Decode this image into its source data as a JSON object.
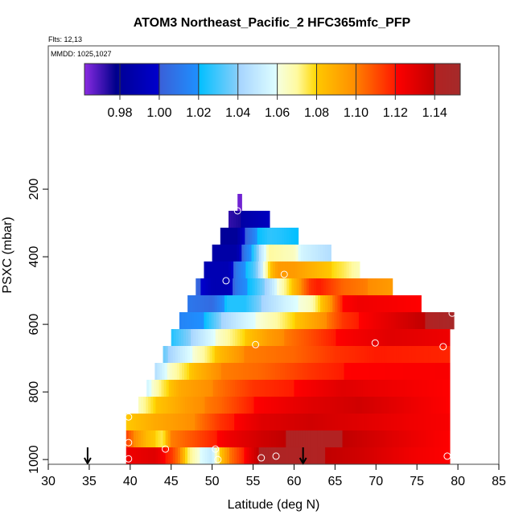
{
  "chart_data": {
    "type": "heatmap",
    "title": "ATOM3 Northeast_Pacific_2 HFC365mfc_PFP",
    "flights_label": "Flts: 12,13",
    "dates_label": "MMDD: 1025,1027",
    "xlabel": "Latitude (deg N)",
    "ylabel": "PSXC (mbar)",
    "xlim": [
      30,
      85
    ],
    "ylim": [
      1014,
      -224
    ],
    "x_ticks": [
      "30",
      "35",
      "40",
      "45",
      "50",
      "55",
      "60",
      "65",
      "70",
      "75",
      "80",
      "85"
    ],
    "y_ticks": [
      "200",
      "400",
      "600",
      "800",
      "1000"
    ],
    "colorbar": {
      "range": [
        0.962,
        1.153
      ],
      "ticks": [
        "0.98",
        "1.00",
        "1.02",
        "1.04",
        "1.06",
        "1.08",
        "1.10",
        "1.12",
        "1.14"
      ],
      "stops": [
        [
          0.962,
          "#8a2be2"
        ],
        [
          0.978,
          "#00008b"
        ],
        [
          0.98,
          "#000099"
        ],
        [
          1.0,
          "#0000cd"
        ],
        [
          1.0,
          "#3a5fd8"
        ],
        [
          1.02,
          "#1e90ff"
        ],
        [
          1.02,
          "#00bfff"
        ],
        [
          1.04,
          "#87cefa"
        ],
        [
          1.04,
          "#a4d3ff"
        ],
        [
          1.06,
          "#e0ffff"
        ],
        [
          1.06,
          "#f5ffe0"
        ],
        [
          1.07,
          "#fffaa0"
        ],
        [
          1.08,
          "#ffd700"
        ],
        [
          1.08,
          "#ffc800"
        ],
        [
          1.1,
          "#ff8c00"
        ],
        [
          1.1,
          "#ff7f00"
        ],
        [
          1.12,
          "#ff1a00"
        ],
        [
          1.12,
          "#ff0000"
        ],
        [
          1.14,
          "#c00000"
        ],
        [
          1.14,
          "#b22222"
        ],
        [
          1.153,
          "#a52a2a"
        ]
      ]
    },
    "rows": [
      {
        "p": [
          214,
          264
        ],
        "lat": [
          53.1,
          53.6
        ],
        "v": [
          [
            53.1,
            0.965
          ],
          [
            53.6,
            0.965
          ]
        ]
      },
      {
        "p": [
          264,
          314
        ],
        "lat": [
          52.0,
          57.0
        ],
        "v": [
          [
            52,
            0.972
          ],
          [
            53.4,
            0.975
          ],
          [
            53.6,
            0.985
          ],
          [
            55.5,
            0.99
          ],
          [
            57,
            0.995
          ]
        ]
      },
      {
        "p": [
          314,
          364
        ],
        "lat": [
          51.0,
          60.5
        ],
        "v": [
          [
            51,
            0.98
          ],
          [
            53,
            0.98
          ],
          [
            54,
            1.0
          ],
          [
            55.5,
            1.02
          ],
          [
            57,
            1.027
          ],
          [
            58.5,
            1.025
          ],
          [
            60.5,
            1.02
          ]
        ]
      },
      {
        "p": [
          364,
          414
        ],
        "lat": [
          50.0,
          64.5
        ],
        "v": [
          [
            50,
            0.985
          ],
          [
            53,
            0.985
          ],
          [
            54,
            1.01
          ],
          [
            55,
            1.025
          ],
          [
            56,
            1.05
          ],
          [
            57,
            1.07
          ],
          [
            60,
            1.065
          ],
          [
            61,
            1.055
          ],
          [
            64.5,
            1.045
          ]
        ]
      },
      {
        "p": [
          414,
          464
        ],
        "lat": [
          49.0,
          68.0
        ],
        "v": [
          [
            49,
            0.99
          ],
          [
            52,
            0.99
          ],
          [
            53,
            1.01
          ],
          [
            55,
            1.03
          ],
          [
            56,
            1.05
          ],
          [
            57,
            1.08
          ],
          [
            58,
            1.095
          ],
          [
            60,
            1.095
          ],
          [
            63,
            1.085
          ],
          [
            66,
            1.075
          ],
          [
            68,
            1.066
          ]
        ]
      },
      {
        "p": [
          464,
          514
        ],
        "lat": [
          48.0,
          72.0
        ],
        "v": [
          [
            48,
            1.005
          ],
          [
            50,
            0.99
          ],
          [
            52,
            0.99
          ],
          [
            53,
            1.01
          ],
          [
            55,
            1.025
          ],
          [
            57,
            1.045
          ],
          [
            58,
            1.06
          ],
          [
            60,
            1.085
          ],
          [
            62,
            1.115
          ],
          [
            63,
            1.12
          ],
          [
            66,
            1.105
          ],
          [
            72,
            1.095
          ]
        ]
      },
      {
        "p": [
          514,
          564
        ],
        "lat": [
          47.0,
          75.5
        ],
        "v": [
          [
            47,
            1.01
          ],
          [
            50,
            1.005
          ],
          [
            52,
            1.025
          ],
          [
            54,
            1.025
          ],
          [
            56,
            1.04
          ],
          [
            59,
            1.055
          ],
          [
            62,
            1.065
          ],
          [
            64,
            1.09
          ],
          [
            66,
            1.12
          ],
          [
            68,
            1.125
          ],
          [
            75.5,
            1.12
          ]
        ]
      },
      {
        "p": [
          564,
          614
        ],
        "lat": [
          46.0,
          79.5
        ],
        "v": [
          [
            46,
            1.015
          ],
          [
            49,
            1.02
          ],
          [
            51,
            1.04
          ],
          [
            54,
            1.055
          ],
          [
            58,
            1.07
          ],
          [
            61,
            1.085
          ],
          [
            64,
            1.1
          ],
          [
            66,
            1.115
          ],
          [
            70,
            1.125
          ],
          [
            76,
            1.14
          ],
          [
            79.5,
            1.15
          ]
        ]
      },
      {
        "p": [
          614,
          664
        ],
        "lat": [
          45.0,
          79.0
        ],
        "v": [
          [
            45,
            1.025
          ],
          [
            48,
            1.045
          ],
          [
            51,
            1.065
          ],
          [
            54,
            1.08
          ],
          [
            57,
            1.095
          ],
          [
            62,
            1.11
          ],
          [
            65,
            1.12
          ],
          [
            72,
            1.13
          ],
          [
            79,
            1.125
          ]
        ]
      },
      {
        "p": [
          664,
          714
        ],
        "lat": [
          44.0,
          79.0
        ],
        "v": [
          [
            44,
            1.035
          ],
          [
            46,
            1.05
          ],
          [
            49,
            1.07
          ],
          [
            51,
            1.085
          ],
          [
            54,
            1.1
          ],
          [
            60,
            1.105
          ],
          [
            65,
            1.115
          ],
          [
            70,
            1.12
          ],
          [
            79,
            1.118
          ]
        ]
      },
      {
        "p": [
          714,
          764
        ],
        "lat": [
          43.0,
          79.0
        ],
        "v": [
          [
            43,
            1.045
          ],
          [
            45,
            1.065
          ],
          [
            48,
            1.085
          ],
          [
            51,
            1.1
          ],
          [
            56,
            1.105
          ],
          [
            62,
            1.115
          ],
          [
            66,
            1.12
          ],
          [
            79,
            1.122
          ]
        ]
      },
      {
        "p": [
          764,
          814
        ],
        "lat": [
          42.0,
          79.0
        ],
        "v": [
          [
            42,
            1.055
          ],
          [
            44,
            1.075
          ],
          [
            46,
            1.09
          ],
          [
            50,
            1.1
          ],
          [
            55,
            1.115
          ],
          [
            60,
            1.12
          ],
          [
            66,
            1.13
          ],
          [
            72,
            1.125
          ],
          [
            79,
            1.12
          ]
        ]
      },
      {
        "p": [
          814,
          864
        ],
        "lat": [
          41.0,
          79.0
        ],
        "v": [
          [
            41,
            1.065
          ],
          [
            43,
            1.08
          ],
          [
            47,
            1.095
          ],
          [
            51,
            1.105
          ],
          [
            55,
            1.12
          ],
          [
            62,
            1.13
          ],
          [
            68,
            1.135
          ],
          [
            75,
            1.125
          ],
          [
            79,
            1.12
          ]
        ]
      },
      {
        "p": [
          864,
          914
        ],
        "lat": [
          39.5,
          79.0
        ],
        "v": [
          [
            39.5,
            1.08
          ],
          [
            43,
            1.09
          ],
          [
            48,
            1.1
          ],
          [
            51,
            1.115
          ],
          [
            56,
            1.13
          ],
          [
            62,
            1.135
          ],
          [
            68,
            1.13
          ],
          [
            74,
            1.125
          ],
          [
            79,
            1.122
          ]
        ]
      },
      {
        "p": [
          914,
          964
        ],
        "lat": [
          39.5,
          79.0
        ],
        "v": [
          [
            39.5,
            1.112
          ],
          [
            40.5,
            1.1
          ],
          [
            42,
            1.085
          ],
          [
            44,
            1.075
          ],
          [
            45,
            1.1
          ],
          [
            48,
            1.11
          ],
          [
            52,
            1.125
          ],
          [
            56,
            1.135
          ],
          [
            60,
            1.142
          ],
          [
            66,
            1.14
          ],
          [
            72,
            1.13
          ],
          [
            79,
            1.12
          ]
        ]
      },
      {
        "p": [
          964,
          1014
        ],
        "lat": [
          39.5,
          79.0
        ],
        "v": [
          [
            39.5,
            1.125
          ],
          [
            43,
            1.13
          ],
          [
            45,
            1.115
          ],
          [
            46,
            1.1
          ],
          [
            47,
            1.075
          ],
          [
            48.5,
            1.06
          ],
          [
            50,
            1.05
          ],
          [
            51,
            1.08
          ],
          [
            52,
            1.1
          ],
          [
            54,
            1.12
          ],
          [
            56,
            1.145
          ],
          [
            62,
            1.142
          ],
          [
            68,
            1.135
          ],
          [
            74,
            1.125
          ],
          [
            79,
            1.12
          ]
        ]
      }
    ],
    "sample_points": [
      [
        53.1,
        264
      ],
      [
        58.8,
        452
      ],
      [
        51.7,
        471
      ],
      [
        79.3,
        567
      ],
      [
        55.3,
        660
      ],
      [
        69.9,
        655
      ],
      [
        78.2,
        666
      ],
      [
        39.8,
        874
      ],
      [
        39.8,
        950
      ],
      [
        44.3,
        969
      ],
      [
        50.4,
        969
      ],
      [
        39.8,
        998
      ],
      [
        50.7,
        1000
      ],
      [
        56.0,
        995
      ],
      [
        57.8,
        990
      ],
      [
        78.7,
        990
      ]
    ],
    "arrows_lat": [
      34.8,
      61.1
    ]
  }
}
